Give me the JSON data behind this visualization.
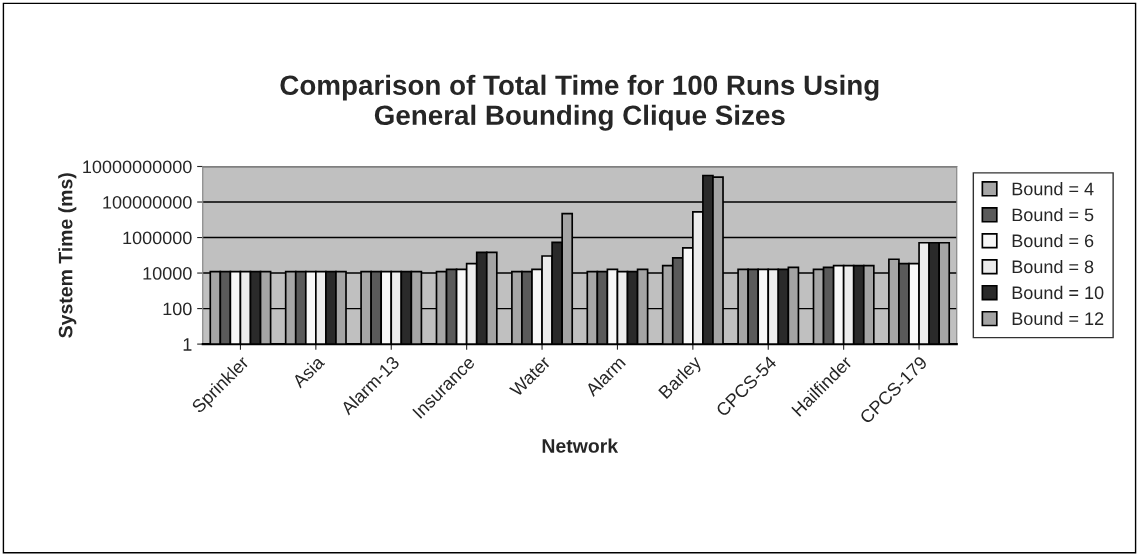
{
  "chart_data": {
    "type": "bar",
    "title": "Comparison of Total Time for 100 Runs Using\nGeneral Bounding Clique Sizes",
    "xlabel": "Network",
    "ylabel": "System Time (ms)",
    "categories": [
      "Sprinkler",
      "Asia",
      "Alarm-13",
      "Insurance",
      "Water",
      "Alarm",
      "Barley",
      "CPCS-54",
      "Hailfinder",
      "CPCS-179"
    ],
    "series": [
      {
        "name": "Bound = 4",
        "color": "#a6a6a6",
        "values": [
          12000,
          12000,
          12000,
          12000,
          12000,
          12000,
          26000,
          16000,
          16000,
          60000
        ]
      },
      {
        "name": "Bound = 5",
        "color": "#5a5a5a",
        "values": [
          12000,
          12000,
          12000,
          16000,
          12000,
          12000,
          72000,
          16000,
          21000,
          34000
        ]
      },
      {
        "name": "Bound = 6",
        "color": "#f8f8f8",
        "values": [
          12000,
          12000,
          12000,
          16000,
          16000,
          16000,
          260000,
          16000,
          26000,
          34000
        ]
      },
      {
        "name": "Bound = 8",
        "color": "#ececec",
        "values": [
          12000,
          12000,
          12000,
          34000,
          91000,
          12000,
          28000000,
          16000,
          26000,
          510000
        ]
      },
      {
        "name": "Bound = 10",
        "color": "#2a2a2a",
        "values": [
          12000,
          12000,
          12000,
          145000,
          540000,
          12000,
          3100000000,
          16000,
          26000,
          510000
        ]
      },
      {
        "name": "Bound = 12",
        "color": "#a4a4a4",
        "values": [
          12000,
          12000,
          12000,
          145000,
          22000000,
          16000,
          2500000000,
          21000,
          26000,
          510000
        ]
      }
    ],
    "log": "y",
    "ylim": [
      1,
      10000000000
    ],
    "yticks": [
      1,
      100,
      10000,
      1000000,
      100000000,
      10000000000
    ],
    "grid": "y",
    "legend": "right"
  }
}
